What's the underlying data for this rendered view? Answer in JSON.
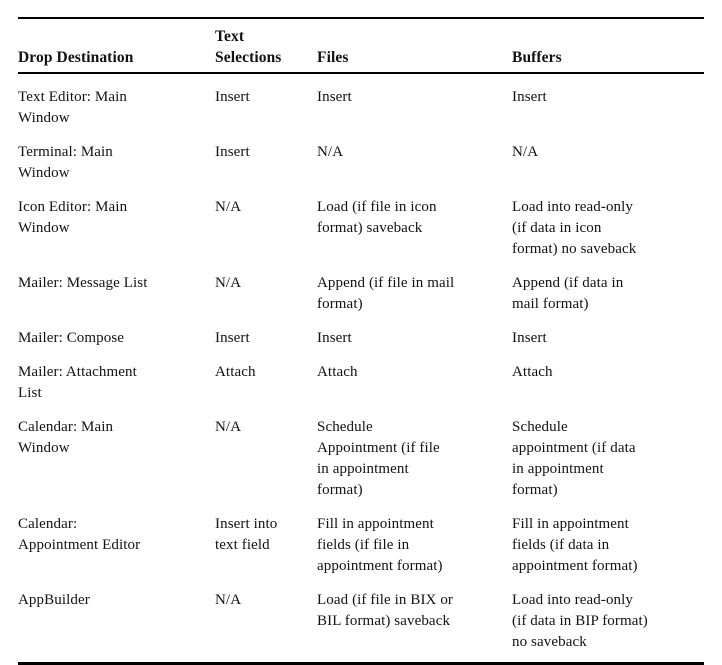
{
  "document": {
    "background_color": "#ffffff",
    "text_color": "#121212",
    "rule_color": "#000000"
  },
  "table": {
    "columns": [
      "Drop Destination",
      "Text\nSelections",
      "Files",
      "Buffers"
    ],
    "rows": [
      {
        "cells": [
          "Text Editor: Main\nWindow",
          "Insert",
          "Insert",
          "Insert"
        ]
      },
      {
        "cells": [
          "Terminal: Main\nWindow",
          "Insert",
          "N/A",
          "N/A"
        ]
      },
      {
        "cells": [
          "Icon Editor: Main\nWindow",
          "N/A",
          "Load (if file in icon\nformat) saveback",
          "Load into read-only\n(if data in icon\nformat) no saveback"
        ]
      },
      {
        "cells": [
          "Mailer: Message List",
          "N/A",
          "Append (if file in mail\nformat)",
          "Append (if data in\nmail format)"
        ]
      },
      {
        "cells": [
          "Mailer: Compose",
          "Insert",
          "Insert",
          "Insert"
        ]
      },
      {
        "cells": [
          "Mailer: Attachment\nList",
          "Attach",
          "Attach",
          "Attach"
        ]
      },
      {
        "cells": [
          "Calendar: Main\nWindow",
          "N/A",
          "Schedule\nAppointment (if file\nin appointment\nformat)",
          "Schedule\nappointment (if data\nin appointment\nformat)"
        ]
      },
      {
        "cells": [
          "Calendar:\nAppointment Editor",
          "Insert into\ntext field",
          "Fill in appointment\nfields (if file in\nappointment format)",
          "Fill in appointment\nfields (if data in\nappointment format)"
        ]
      },
      {
        "cells": [
          "AppBuilder",
          "N/A",
          "Load (if file in BIX or\nBIL format) saveback",
          "Load into read-only\n(if data in BIP format)\nno saveback"
        ]
      }
    ]
  }
}
